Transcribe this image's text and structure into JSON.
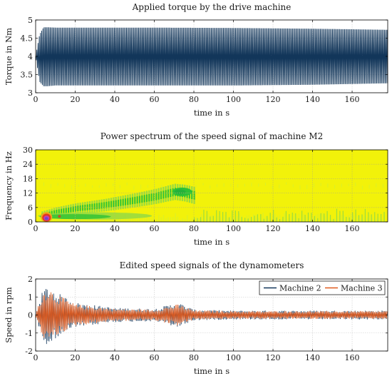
{
  "chart_data": [
    {
      "type": "line",
      "title": "Applied torque by the drive machine",
      "xlabel": "time in s",
      "ylabel": "Torque in Nm",
      "xlim": [
        0,
        178
      ],
      "ylim": [
        3,
        5
      ],
      "xticks": [
        0,
        20,
        40,
        60,
        80,
        100,
        120,
        140,
        160
      ],
      "yticks": [
        3,
        3.5,
        4,
        4.5,
        5
      ],
      "grid": true,
      "series": [
        {
          "color": "#12365a",
          "envelope": {
            "x": [
              0,
              2,
              4,
              6,
              10,
              20,
              60,
              100,
              140,
              178
            ],
            "upper": [
              4.0,
              4.6,
              4.8,
              4.8,
              4.79,
              4.79,
              4.79,
              4.78,
              4.76,
              4.73
            ],
            "lower": [
              4.0,
              3.3,
              3.18,
              3.18,
              3.2,
              3.2,
              3.2,
              3.2,
              3.22,
              3.26
            ]
          }
        }
      ]
    },
    {
      "type": "heatmap",
      "title": "Power spectrum of the speed signal of machine M2",
      "xlabel": "time in s",
      "ylabel": "Frequency in Hz",
      "xlim": [
        0,
        178
      ],
      "ylim": [
        0,
        30
      ],
      "xticks": [
        0,
        20,
        40,
        60,
        80,
        100,
        120,
        140,
        160
      ],
      "yticks": [
        0,
        6,
        12,
        18,
        24,
        30
      ],
      "grid": true,
      "colors": {
        "background": "#f2f20a",
        "low": "#d9ef2a",
        "mid": "#8fd846",
        "high": "#2dc236",
        "peak": "#e23a1c",
        "core": "#6d49c9"
      },
      "ridge": {
        "x": [
          3,
          10,
          20,
          35,
          50,
          60,
          70,
          75,
          80
        ],
        "y": [
          2.5,
          4,
          5.5,
          7,
          9,
          10.5,
          12.5,
          12,
          11
        ]
      }
    },
    {
      "type": "line",
      "title": "Edited speed signals of the dynamometers",
      "xlabel": "time in s",
      "ylabel": "Speed in rpm",
      "xlim": [
        0,
        178
      ],
      "ylim": [
        -2,
        2
      ],
      "xticks": [
        0,
        20,
        40,
        60,
        80,
        100,
        120,
        140,
        160
      ],
      "yticks": [
        -2,
        -1,
        0,
        1,
        2
      ],
      "grid": true,
      "legend": "top-right",
      "series": [
        {
          "name": "Machine 2",
          "color": "#12365a",
          "envelope": {
            "x": [
              0,
              3,
              6,
              10,
              20,
              40,
              60,
              72,
              80,
              100,
              140,
              178
            ],
            "amplitude": [
              0.05,
              1.2,
              1.7,
              1.3,
              0.7,
              0.4,
              0.35,
              0.7,
              0.3,
              0.25,
              0.25,
              0.25
            ]
          }
        },
        {
          "name": "Machine 3",
          "color": "#e05a1e",
          "envelope": {
            "x": [
              0,
              3,
              6,
              10,
              20,
              40,
              60,
              72,
              80,
              100,
              140,
              178
            ],
            "amplitude": [
              0.05,
              1.1,
              1.6,
              1.2,
              0.6,
              0.35,
              0.3,
              0.6,
              0.27,
              0.22,
              0.22,
              0.22
            ]
          }
        }
      ]
    }
  ]
}
